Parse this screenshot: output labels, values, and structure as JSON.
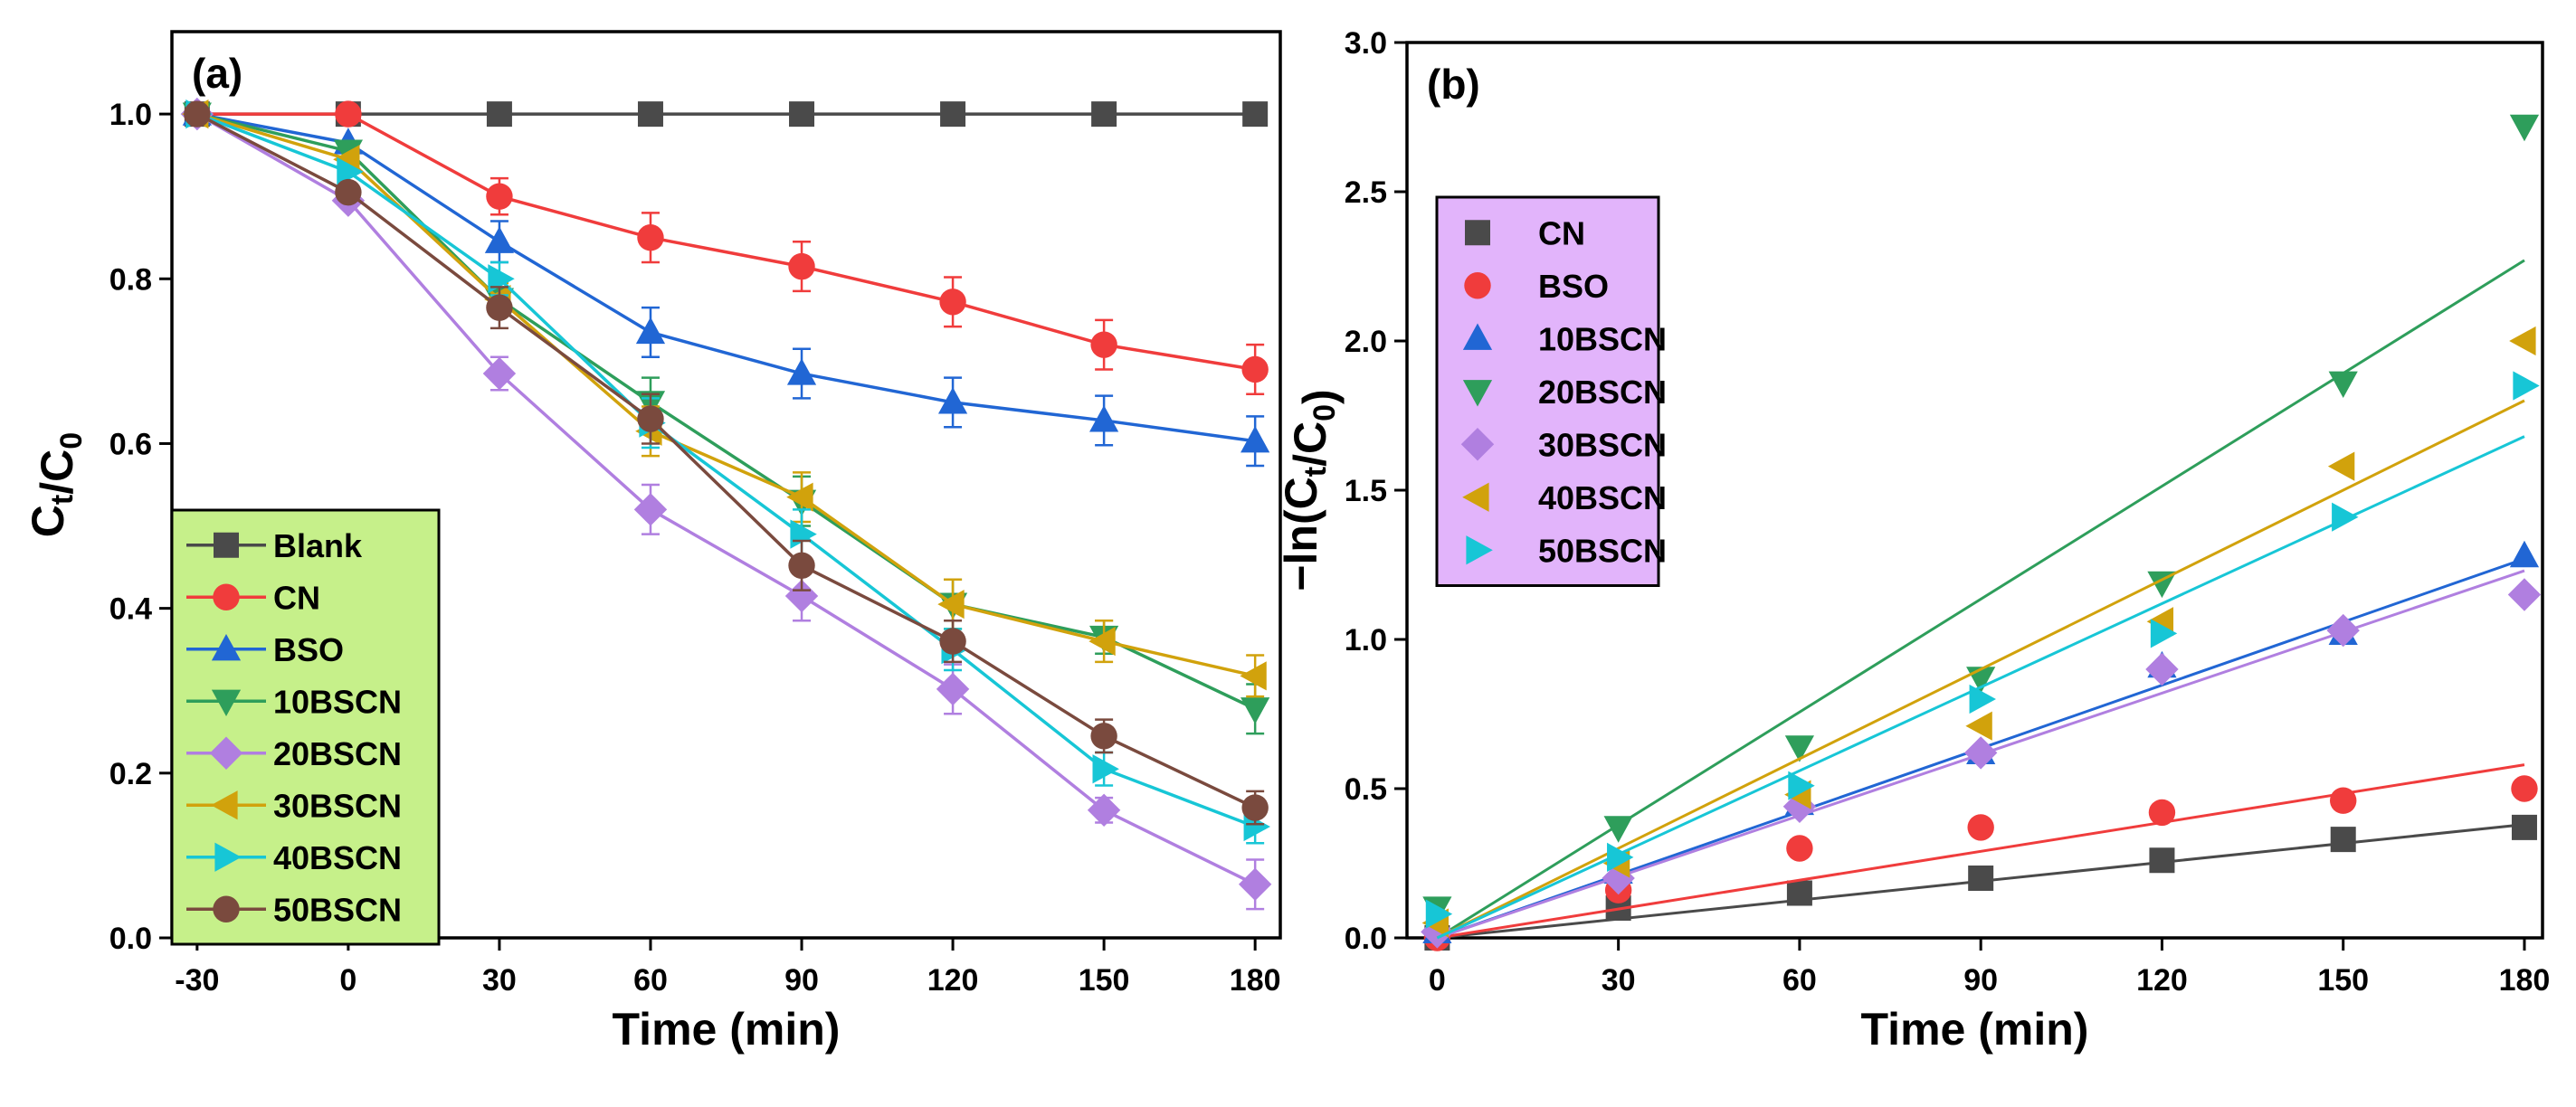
{
  "chart_data": [
    {
      "type": "line",
      "panel_label": "(a)",
      "xlabel": "Time (min)",
      "ylabel_main": "C",
      "ylabel_sub1": "t",
      "ylabel_mid": "/C",
      "ylabel_sub2": "0",
      "xlim": [
        -35,
        185
      ],
      "ylim": [
        0.0,
        1.1
      ],
      "xticks": [
        -30,
        0,
        30,
        60,
        90,
        120,
        150,
        180
      ],
      "xtick_labels": [
        "-30",
        "0",
        "30",
        "60",
        "90",
        "120",
        "150",
        "180"
      ],
      "yticks": [
        0.0,
        0.2,
        0.4,
        0.6,
        0.8,
        1.0
      ],
      "ytick_labels": [
        "0.0",
        "0.2",
        "0.4",
        "0.6",
        "0.8",
        "1.0"
      ],
      "x": [
        -30,
        0,
        30,
        60,
        90,
        120,
        150,
        180
      ],
      "legend_position": "bottom-left",
      "legend_bg": "#c6f08a",
      "series": [
        {
          "name": "Blank",
          "color": "#4a4a4a",
          "marker": "square",
          "values": [
            1.0,
            1.0,
            1.0,
            1.0,
            1.0,
            1.0,
            1.0,
            1.0
          ],
          "err": [
            0,
            0,
            0,
            0,
            0,
            0,
            0,
            0
          ]
        },
        {
          "name": "CN",
          "color": "#f03c3c",
          "marker": "circle",
          "values": [
            1.0,
            1.0,
            0.9,
            0.85,
            0.815,
            0.772,
            0.72,
            0.69
          ],
          "err": [
            0,
            0,
            0.022,
            0.03,
            0.03,
            0.03,
            0.03,
            0.03
          ]
        },
        {
          "name": "BSO",
          "color": "#2166d4",
          "marker": "triangle-up",
          "values": [
            1.0,
            0.965,
            0.845,
            0.735,
            0.685,
            0.65,
            0.628,
            0.603
          ],
          "err": [
            0,
            0,
            0.025,
            0.03,
            0.03,
            0.03,
            0.03,
            0.03
          ]
        },
        {
          "name": "10BSCN",
          "color": "#2e9e5b",
          "marker": "triangle-down",
          "values": [
            1.0,
            0.955,
            0.775,
            0.65,
            0.53,
            0.405,
            0.365,
            0.278
          ],
          "err": [
            0,
            0,
            0.02,
            0.03,
            0.03,
            0.03,
            0.02,
            0.03
          ]
        },
        {
          "name": "20BSCN",
          "color": "#b07fe0",
          "marker": "diamond",
          "values": [
            1.0,
            0.895,
            0.685,
            0.52,
            0.415,
            0.302,
            0.155,
            0.065
          ],
          "err": [
            0,
            0,
            0.02,
            0.03,
            0.03,
            0.03,
            0.015,
            0.03
          ]
        },
        {
          "name": "30BSCN",
          "color": "#d1a20c",
          "marker": "triangle-left",
          "values": [
            1.0,
            0.945,
            0.775,
            0.615,
            0.535,
            0.405,
            0.36,
            0.318
          ],
          "err": [
            0,
            0,
            0.02,
            0.03,
            0.03,
            0.03,
            0.025,
            0.025
          ]
        },
        {
          "name": "40BSCN",
          "color": "#17c6d6",
          "marker": "triangle-right",
          "values": [
            1.0,
            0.93,
            0.8,
            0.625,
            0.49,
            0.35,
            0.205,
            0.135
          ],
          "err": [
            0,
            0,
            0.02,
            0.03,
            0.03,
            0.025,
            0.02,
            0.02
          ]
        },
        {
          "name": "50BSCN",
          "color": "#7a4a3e",
          "marker": "circle",
          "values": [
            1.0,
            0.905,
            0.765,
            0.63,
            0.452,
            0.36,
            0.245,
            0.158
          ],
          "err": [
            0,
            0,
            0.025,
            0.03,
            0.03,
            0.025,
            0.02,
            0.02
          ]
        }
      ]
    },
    {
      "type": "scatter",
      "panel_label": "(b)",
      "xlabel": "Time (min)",
      "ylabel_main": "−ln(C",
      "ylabel_sub1": "t",
      "ylabel_mid": "/C",
      "ylabel_sub2": "0",
      "ylabel_end": ")",
      "xlim": [
        -5,
        183
      ],
      "ylim": [
        0.0,
        3.0
      ],
      "xticks": [
        0,
        30,
        60,
        90,
        120,
        150,
        180
      ],
      "xtick_labels": [
        "0",
        "30",
        "60",
        "90",
        "120",
        "150",
        "180"
      ],
      "yticks": [
        0.0,
        0.5,
        1.0,
        1.5,
        2.0,
        2.5,
        3.0
      ],
      "ytick_labels": [
        "0.0",
        "0.5",
        "1.0",
        "1.5",
        "2.0",
        "2.5",
        "3.0"
      ],
      "x": [
        0,
        30,
        60,
        90,
        120,
        150,
        180
      ],
      "legend_position": "upper-left",
      "legend_bg": "#e2b4fb",
      "series": [
        {
          "name": "CN",
          "color": "#4a4a4a",
          "marker": "square",
          "values": [
            0.0,
            0.1,
            0.15,
            0.2,
            0.26,
            0.33,
            0.37
          ],
          "fit_end": 0.38
        },
        {
          "name": "BSO",
          "color": "#f03c3c",
          "marker": "circle",
          "values": [
            0.0,
            0.16,
            0.3,
            0.37,
            0.42,
            0.46,
            0.5
          ],
          "fit_end": 0.58
        },
        {
          "name": "10BSCN",
          "color": "#2166d4",
          "marker": "triangle-up",
          "values": [
            0.02,
            0.22,
            0.45,
            0.62,
            0.91,
            1.02,
            1.28
          ],
          "fit_end": 1.27
        },
        {
          "name": "20BSCN",
          "color": "#2e9e5b",
          "marker": "triangle-down",
          "values": [
            0.1,
            0.37,
            0.64,
            0.87,
            1.19,
            1.86,
            2.72
          ],
          "fit_end": 2.27
        },
        {
          "name": "30BSCN",
          "color": "#b07fe0",
          "marker": "diamond",
          "values": [
            0.02,
            0.2,
            0.44,
            0.62,
            0.9,
            1.03,
            1.15
          ],
          "fit_end": 1.23
        },
        {
          "name": "40BSCN",
          "color": "#d1a20c",
          "marker": "triangle-left",
          "values": [
            0.05,
            0.25,
            0.48,
            0.71,
            1.06,
            1.58,
            2.0
          ],
          "fit_end": 1.8
        },
        {
          "name": "50BSCN",
          "color": "#17c6d6",
          "marker": "triangle-right",
          "values": [
            0.08,
            0.27,
            0.51,
            0.8,
            1.02,
            1.41,
            1.85
          ],
          "fit_end": 1.68
        }
      ]
    }
  ]
}
